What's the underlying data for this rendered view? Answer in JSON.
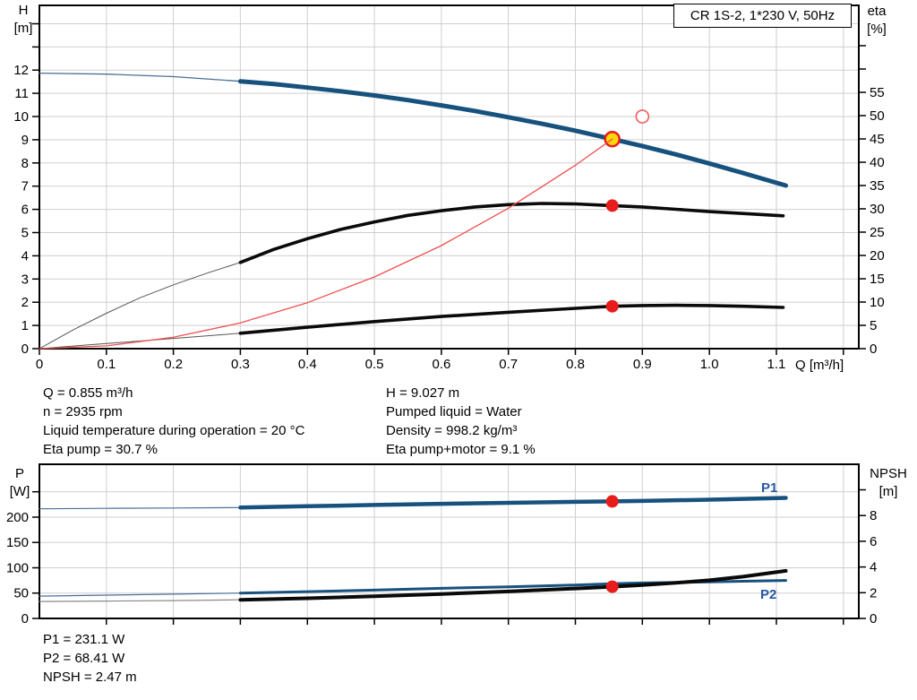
{
  "title_box": {
    "label": "CR 1S-2, 1*230 V, 50Hz"
  },
  "colors": {
    "blue": "#17517e",
    "blue_thin": "#4a6f96",
    "black": "#0a0a0a",
    "black_thin": "#555555",
    "grey_thin": "#8a8a8a",
    "red": "#e81c1c",
    "red_open": "#ef6a6a",
    "red_thin": "#ef5050",
    "marker_yellow": "#ffd60a",
    "grid": "#cfcfcf",
    "label_blue": "#2458a6"
  },
  "annotations": {
    "left": [
      "Q = 0.855 m³/h",
      "n = 2935 rpm",
      "Liquid temperature during operation = 20 °C",
      "Eta pump = 30.7 %"
    ],
    "right": [
      "H = 9.027 m",
      "Pumped liquid = Water",
      "Density = 998.2 kg/m³",
      "Eta pump+motor = 9.1 %"
    ],
    "bottom": [
      "P1 = 231.1 W",
      "P2 = 68.41 W",
      "NPSH = 2.47 m"
    ]
  },
  "bottom_labels": {
    "p1": "P1",
    "p2": "P2"
  },
  "chart_data": [
    {
      "id": "head-and-efficiency",
      "type": "line",
      "title": "CR 1S-2, 1*230 V, 50Hz",
      "x_axis": {
        "label": "Q [m³/h]",
        "min": 0,
        "max": 1.223,
        "ticks": [
          0,
          0.1,
          0.2,
          0.3,
          0.4,
          0.5,
          0.6,
          0.7,
          0.8,
          0.9,
          1.0,
          1.1
        ],
        "tick_labels": [
          "0",
          "0.1",
          "0.2",
          "0.3",
          "0.4",
          "0.5",
          "0.6",
          "0.7",
          "0.8",
          "0.9",
          "1.0",
          "1.1"
        ],
        "unlabeled_ticks": [
          1.2
        ],
        "grid_values": [
          0.1,
          0.2,
          0.3,
          0.4,
          0.5,
          0.6,
          0.7,
          0.8,
          0.9,
          1.0,
          1.1,
          1.2
        ]
      },
      "left_axis": {
        "unit": [
          "H",
          "[m]"
        ],
        "min": 0,
        "max": 14.79,
        "ticks": [
          0,
          1,
          2,
          3,
          4,
          5,
          6,
          7,
          8,
          9,
          10,
          11,
          12
        ],
        "unlabeled_ticks": [
          13,
          14
        ],
        "grid_values": [
          1,
          2,
          3,
          4,
          5,
          6,
          7,
          8,
          9,
          10,
          11,
          12,
          13,
          14
        ]
      },
      "right_axis": {
        "unit": [
          "eta",
          "[%]"
        ],
        "min": 0,
        "max": 73.65,
        "ticks": [
          0,
          5,
          10,
          15,
          20,
          25,
          30,
          35,
          40,
          45,
          50,
          55
        ],
        "unlabeled_ticks": [
          60,
          65
        ],
        "grid_values": []
      },
      "series": [
        {
          "name": "head-curve-extension",
          "axis": "left",
          "color": "blue_thin",
          "width": 1.3,
          "points": [
            [
              0,
              11.87
            ],
            [
              0.1,
              11.83
            ],
            [
              0.2,
              11.72
            ],
            [
              0.3,
              11.52
            ]
          ]
        },
        {
          "name": "head-curve",
          "axis": "left",
          "color": "blue",
          "width": 5,
          "points": [
            [
              0.3,
              11.52
            ],
            [
              0.35,
              11.4
            ],
            [
              0.4,
              11.25
            ],
            [
              0.45,
              11.09
            ],
            [
              0.5,
              10.91
            ],
            [
              0.55,
              10.71
            ],
            [
              0.6,
              10.48
            ],
            [
              0.65,
              10.24
            ],
            [
              0.7,
              9.97
            ],
            [
              0.75,
              9.69
            ],
            [
              0.8,
              9.39
            ],
            [
              0.855,
              9.03
            ],
            [
              0.9,
              8.73
            ],
            [
              0.95,
              8.37
            ],
            [
              1.0,
              7.98
            ],
            [
              1.05,
              7.57
            ],
            [
              1.114,
              7.03
            ]
          ]
        },
        {
          "name": "eta-pump-extension",
          "axis": "right",
          "color": "black_thin",
          "width": 1,
          "points": [
            [
              0,
              0
            ],
            [
              0.05,
              4
            ],
            [
              0.1,
              7.6
            ],
            [
              0.15,
              10.9
            ],
            [
              0.2,
              13.7
            ],
            [
              0.25,
              16.2
            ],
            [
              0.3,
              18.5
            ]
          ]
        },
        {
          "name": "eta-pump-curve",
          "axis": "right",
          "color": "black",
          "width": 3.6,
          "points": [
            [
              0.3,
              18.5
            ],
            [
              0.35,
              21.3
            ],
            [
              0.4,
              23.6
            ],
            [
              0.45,
              25.6
            ],
            [
              0.5,
              27.2
            ],
            [
              0.55,
              28.6
            ],
            [
              0.6,
              29.6
            ],
            [
              0.65,
              30.4
            ],
            [
              0.7,
              30.9
            ],
            [
              0.75,
              31.15
            ],
            [
              0.8,
              31.05
            ],
            [
              0.855,
              30.7
            ],
            [
              0.9,
              30.4
            ],
            [
              0.95,
              29.9
            ],
            [
              1.0,
              29.4
            ],
            [
              1.05,
              29.0
            ],
            [
              1.11,
              28.5
            ]
          ]
        },
        {
          "name": "eta-pump-motor-extension",
          "axis": "right",
          "color": "black_thin",
          "width": 1,
          "points": [
            [
              0,
              0
            ],
            [
              0.1,
              1.1
            ],
            [
              0.2,
              2.2
            ],
            [
              0.3,
              3.3
            ]
          ]
        },
        {
          "name": "eta-pump-motor-curve",
          "axis": "right",
          "color": "black",
          "width": 3.6,
          "points": [
            [
              0.3,
              3.3
            ],
            [
              0.4,
              4.6
            ],
            [
              0.5,
              5.8
            ],
            [
              0.6,
              6.9
            ],
            [
              0.7,
              7.8
            ],
            [
              0.8,
              8.65
            ],
            [
              0.855,
              9.1
            ],
            [
              0.9,
              9.25
            ],
            [
              0.95,
              9.3
            ],
            [
              1.0,
              9.25
            ],
            [
              1.05,
              9.1
            ],
            [
              1.11,
              8.85
            ]
          ]
        },
        {
          "name": "system-curve",
          "axis": "left",
          "color": "red_thin",
          "width": 1.3,
          "on_top": true,
          "points": [
            [
              0,
              0
            ],
            [
              0.1,
              0.12
            ],
            [
              0.2,
              0.49
            ],
            [
              0.3,
              1.11
            ],
            [
              0.4,
              1.98
            ],
            [
              0.5,
              3.09
            ],
            [
              0.6,
              4.44
            ],
            [
              0.7,
              6.05
            ],
            [
              0.8,
              7.9
            ],
            [
              0.855,
              9.027
            ]
          ]
        }
      ],
      "markers": [
        {
          "name": "eta-pump-motor-point",
          "style": "dot",
          "x": 0.855,
          "axis": "right",
          "v": 9.1
        },
        {
          "name": "eta-pump-point",
          "style": "dot",
          "x": 0.855,
          "axis": "right",
          "v": 30.7
        },
        {
          "name": "duty-point-marker",
          "style": "ring",
          "x": 0.855,
          "axis": "left",
          "v": 9.027
        },
        {
          "name": "rated-duty-marker",
          "style": "open",
          "x": 0.9,
          "axis": "left",
          "v": 10
        }
      ]
    },
    {
      "id": "power-and-npsh",
      "type": "line",
      "x_axis": {
        "label": "",
        "min": 0,
        "max": 1.223,
        "ticks": [],
        "tick_labels": [],
        "unlabeled_ticks": [
          0.1,
          0.2,
          0.3,
          0.4,
          0.5,
          0.6,
          0.7,
          0.8,
          0.9,
          1.0,
          1.1,
          1.2
        ],
        "grid_values": [
          0.1,
          0.2,
          0.3,
          0.4,
          0.5,
          0.6,
          0.7,
          0.8,
          0.9,
          1.0,
          1.1,
          1.2
        ]
      },
      "left_axis": {
        "unit": [
          "P",
          "[W]"
        ],
        "min": 0,
        "max": 304.4,
        "ticks": [
          0,
          50,
          100,
          150,
          200
        ],
        "unlabeled_ticks": [
          250
        ],
        "grid_values": [
          50,
          100,
          150,
          200,
          250
        ]
      },
      "right_axis": {
        "unit": [
          "NPSH",
          "[m]"
        ],
        "min": 0,
        "max": 11.99,
        "ticks": [
          0,
          2,
          4,
          6,
          8
        ],
        "unlabeled_ticks": [
          10
        ],
        "grid_values": []
      },
      "series": [
        {
          "name": "p1-curve-extension",
          "axis": "left",
          "color": "blue_thin",
          "width": 1.2,
          "points": [
            [
              0,
              216.5
            ],
            [
              0.1,
              217.3
            ],
            [
              0.2,
              218.1
            ],
            [
              0.3,
              219
            ]
          ]
        },
        {
          "name": "p1-curve",
          "axis": "left",
          "color": "blue",
          "width": 4.5,
          "points": [
            [
              0.3,
              219
            ],
            [
              0.4,
              221.5
            ],
            [
              0.5,
              224
            ],
            [
              0.6,
              226.3
            ],
            [
              0.7,
              228.3
            ],
            [
              0.8,
              230.2
            ],
            [
              0.855,
              231.1
            ],
            [
              0.9,
              232
            ],
            [
              1.0,
              234.5
            ],
            [
              1.05,
              236
            ],
            [
              1.114,
              238
            ]
          ]
        },
        {
          "name": "p2-curve-extension",
          "axis": "left",
          "color": "blue_thin",
          "width": 1.2,
          "points": [
            [
              0,
              44
            ],
            [
              0.1,
              46
            ],
            [
              0.2,
              48
            ],
            [
              0.3,
              50
            ]
          ]
        },
        {
          "name": "p2-curve",
          "axis": "left",
          "color": "blue",
          "width": 3,
          "points": [
            [
              0.3,
              50
            ],
            [
              0.4,
              53
            ],
            [
              0.5,
              56
            ],
            [
              0.6,
              59.5
            ],
            [
              0.7,
              62.5
            ],
            [
              0.8,
              66
            ],
            [
              0.855,
              68.41
            ],
            [
              0.9,
              70
            ],
            [
              1.0,
              72
            ],
            [
              1.05,
              73.5
            ],
            [
              1.114,
              75
            ]
          ]
        },
        {
          "name": "npsh-curve-extension",
          "axis": "right",
          "color": "grey_thin",
          "width": 1.2,
          "points": [
            [
              0,
              1.32
            ],
            [
              0.1,
              1.35
            ],
            [
              0.2,
              1.39
            ],
            [
              0.3,
              1.45
            ]
          ]
        },
        {
          "name": "npsh-curve",
          "axis": "right",
          "color": "black",
          "width": 4,
          "points": [
            [
              0.3,
              1.45
            ],
            [
              0.4,
              1.57
            ],
            [
              0.5,
              1.72
            ],
            [
              0.6,
              1.9
            ],
            [
              0.7,
              2.1
            ],
            [
              0.8,
              2.33
            ],
            [
              0.855,
              2.47
            ],
            [
              0.9,
              2.6
            ],
            [
              0.95,
              2.77
            ],
            [
              1.0,
              2.97
            ],
            [
              1.05,
              3.25
            ],
            [
              1.114,
              3.7
            ]
          ]
        }
      ],
      "markers": [
        {
          "name": "p1-point",
          "style": "dot",
          "x": 0.855,
          "axis": "left",
          "v": 231.1
        },
        {
          "name": "npsh-point",
          "style": "dot",
          "x": 0.855,
          "axis": "right",
          "v": 2.47
        }
      ]
    }
  ]
}
